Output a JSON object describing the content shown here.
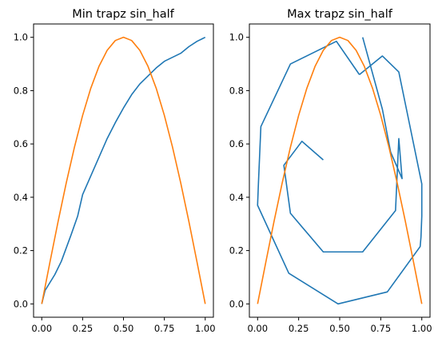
{
  "chart_data": [
    {
      "type": "line",
      "title": "Min trapz sin_half",
      "xlim": [
        -0.05,
        1.05
      ],
      "ylim": [
        -0.05,
        1.05
      ],
      "xticks": [
        0.0,
        0.25,
        0.5,
        0.75,
        1.0
      ],
      "xtick_labels": [
        "0.00",
        "0.25",
        "0.50",
        "0.75",
        "1.00"
      ],
      "yticks": [
        0.0,
        0.2,
        0.4,
        0.6,
        0.8,
        1.0
      ],
      "ytick_labels": [
        "0.0",
        "0.2",
        "0.4",
        "0.6",
        "0.8",
        "1.0"
      ],
      "grid": false,
      "series": [
        {
          "color": "#1f77b4",
          "x": [
            0.0,
            0.02,
            0.08,
            0.12,
            0.18,
            0.22,
            0.25,
            0.3,
            0.35,
            0.4,
            0.45,
            0.5,
            0.55,
            0.6,
            0.65,
            0.7,
            0.75,
            0.85,
            0.9,
            0.95,
            1.0
          ],
          "y": [
            0.0,
            0.05,
            0.11,
            0.16,
            0.26,
            0.33,
            0.41,
            0.48,
            0.55,
            0.62,
            0.68,
            0.735,
            0.785,
            0.825,
            0.855,
            0.885,
            0.91,
            0.94,
            0.965,
            0.985,
            1.0
          ]
        },
        {
          "color": "#ff7f0e",
          "x": [
            0.0,
            0.05,
            0.1,
            0.15,
            0.2,
            0.25,
            0.3,
            0.35,
            0.4,
            0.45,
            0.5,
            0.55,
            0.6,
            0.65,
            0.7,
            0.75,
            0.8,
            0.85,
            0.9,
            0.95,
            1.0
          ],
          "y": [
            0.0,
            0.156,
            0.309,
            0.454,
            0.588,
            0.707,
            0.809,
            0.891,
            0.951,
            0.988,
            1.0,
            0.988,
            0.951,
            0.891,
            0.809,
            0.707,
            0.588,
            0.454,
            0.309,
            0.156,
            0.0
          ]
        }
      ]
    },
    {
      "type": "line",
      "title": "Max trapz sin_half",
      "xlim": [
        -0.05,
        1.05
      ],
      "ylim": [
        -0.05,
        1.05
      ],
      "xticks": [
        0.0,
        0.25,
        0.5,
        0.75,
        1.0
      ],
      "xtick_labels": [
        "0.00",
        "0.25",
        "0.50",
        "0.75",
        "1.00"
      ],
      "yticks": [
        0.0,
        0.2,
        0.4,
        0.6,
        0.8,
        1.0
      ],
      "ytick_labels": [
        "0.0",
        "0.2",
        "0.4",
        "0.6",
        "0.8",
        "1.0"
      ],
      "grid": false,
      "series": [
        {
          "color": "#1f77b4",
          "x": [
            0.64,
            0.76,
            0.81,
            0.88,
            0.86,
            0.84,
            0.64,
            0.4,
            0.2,
            0.16,
            0.27,
            0.4
          ],
          "y": [
            1.0,
            0.73,
            0.57,
            0.47,
            0.62,
            0.35,
            0.195,
            0.195,
            0.34,
            0.52,
            0.61,
            0.54
          ]
        },
        {
          "color": "#1f77b4",
          "x": [
            0.62,
            0.48,
            0.2,
            0.02,
            0.005,
            0.0,
            0.19,
            0.49,
            0.79,
            0.99,
            0.995,
            1.0,
            1.0,
            0.86,
            0.76,
            0.62
          ],
          "y": [
            0.86,
            0.985,
            0.9,
            0.665,
            0.45,
            0.37,
            0.115,
            0.0,
            0.045,
            0.215,
            0.25,
            0.33,
            0.45,
            0.87,
            0.93,
            0.86
          ]
        },
        {
          "color": "#ff7f0e",
          "x": [
            0.0,
            0.05,
            0.1,
            0.15,
            0.2,
            0.25,
            0.3,
            0.35,
            0.4,
            0.45,
            0.5,
            0.55,
            0.6,
            0.65,
            0.7,
            0.75,
            0.8,
            0.85,
            0.9,
            0.95,
            1.0
          ],
          "y": [
            0.0,
            0.156,
            0.309,
            0.454,
            0.588,
            0.707,
            0.809,
            0.891,
            0.951,
            0.988,
            1.0,
            0.988,
            0.951,
            0.891,
            0.809,
            0.707,
            0.588,
            0.454,
            0.309,
            0.156,
            0.0
          ]
        }
      ]
    }
  ]
}
